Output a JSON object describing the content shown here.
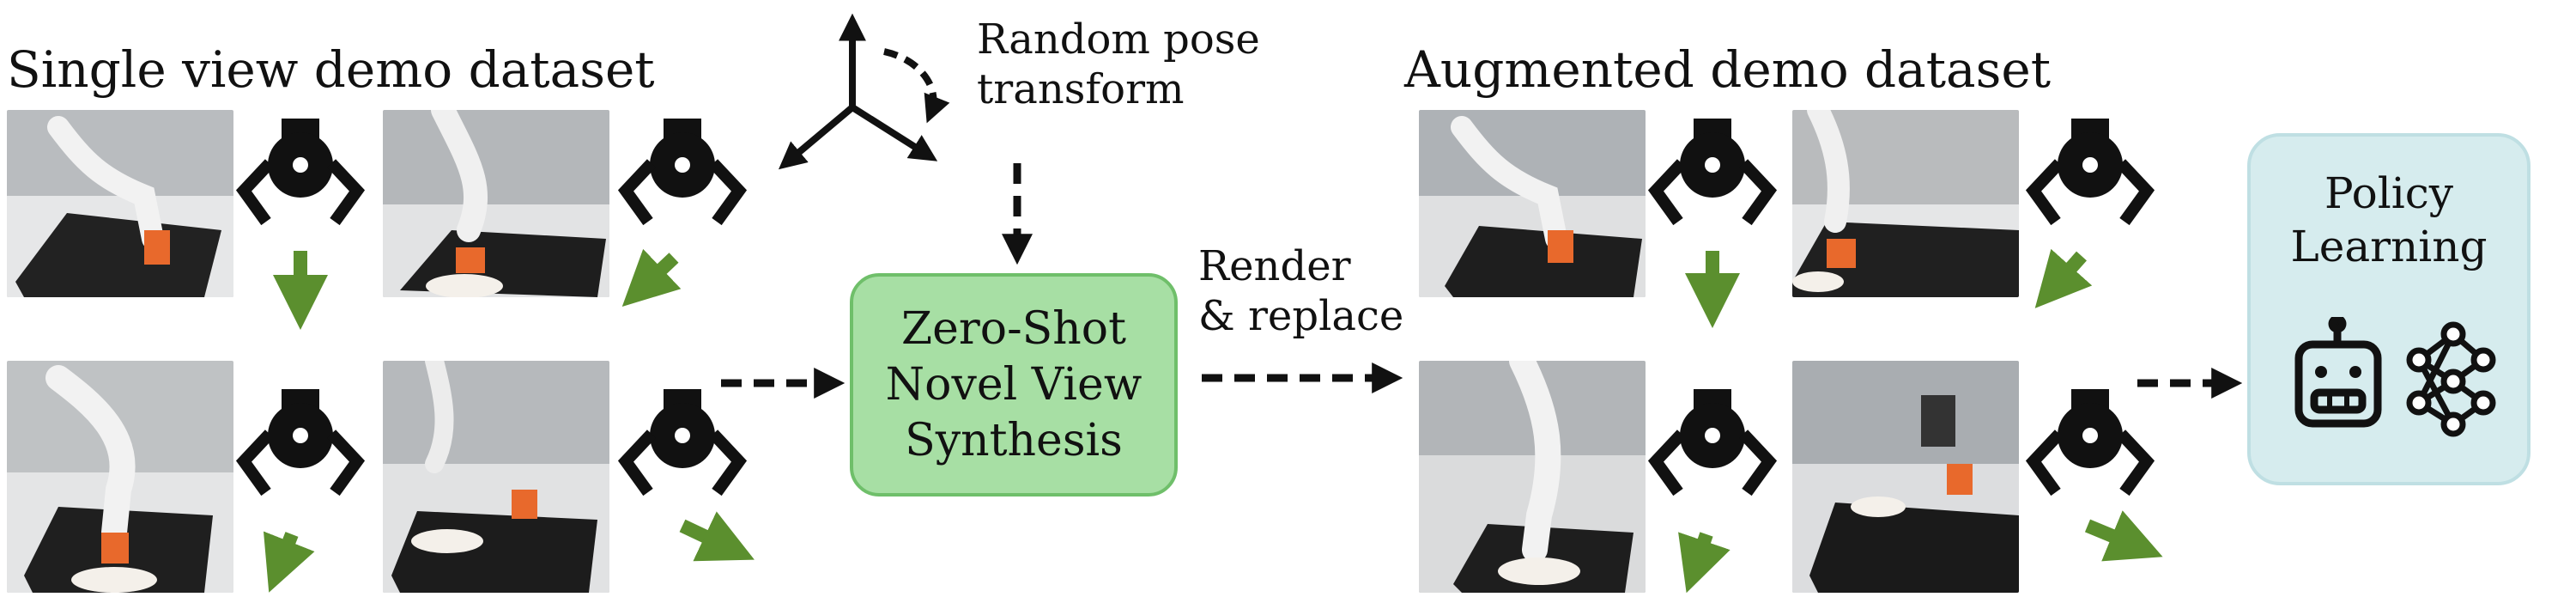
{
  "left_section": {
    "title": "Single view demo dataset"
  },
  "right_section": {
    "title": "Augmented demo dataset"
  },
  "transform": {
    "line1": "Random pose",
    "line2": "transform"
  },
  "render": {
    "line1": "Render",
    "line2": "& replace"
  },
  "nvs": {
    "line1": "Zero-Shot",
    "line2": "Novel View",
    "line3": "Synthesis"
  },
  "policy": {
    "line1": "Policy",
    "line2": "Learning"
  },
  "icons": {
    "gripper": "gripper-icon",
    "robot": "robot-face-icon",
    "network": "neural-network-icon",
    "axes": "coordinate-axes-icon"
  },
  "colors": {
    "nvs_fill": "#a7dfa4",
    "policy_fill": "#d6ecee",
    "arrow_green": "#5b8f2e"
  }
}
